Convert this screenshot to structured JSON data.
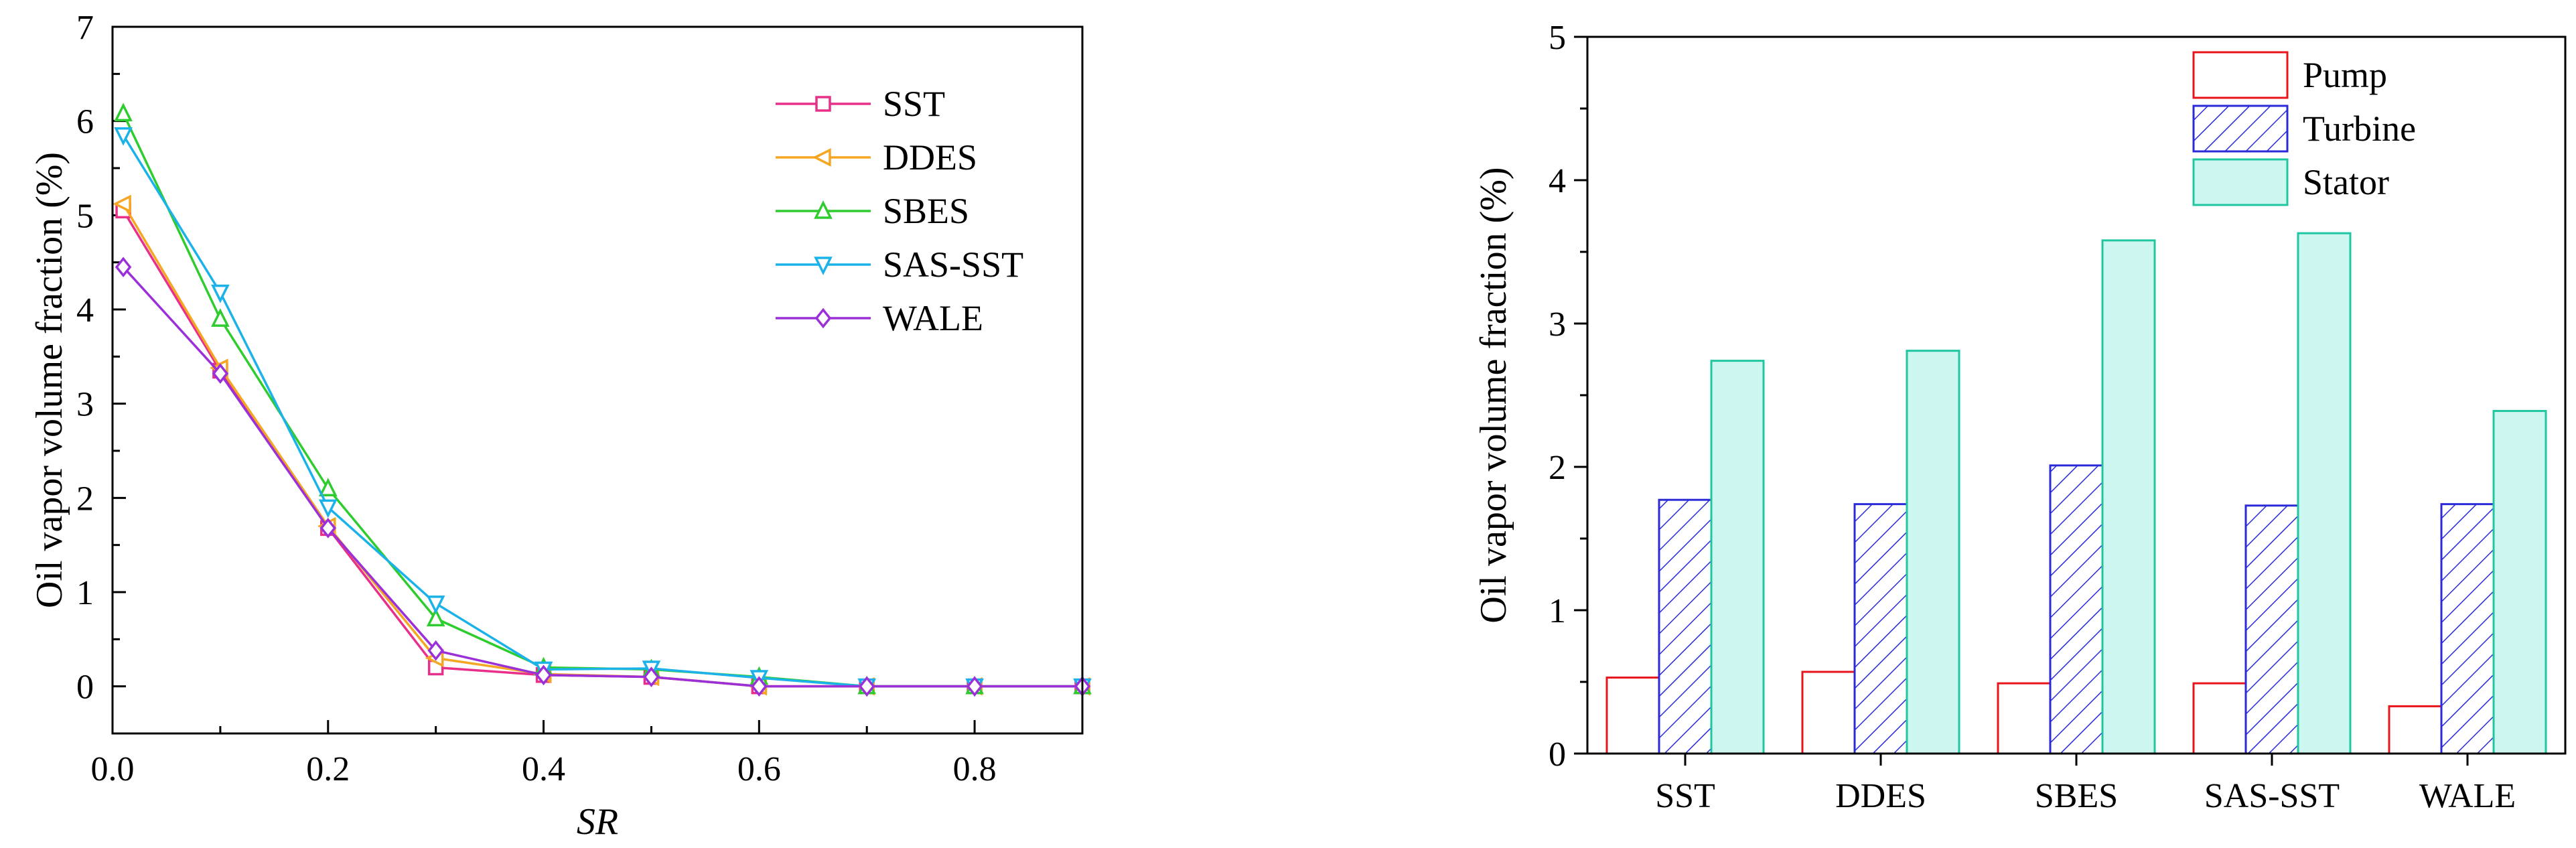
{
  "chart_data": [
    {
      "type": "line",
      "title": "",
      "xlabel": "SR",
      "ylabel": "Oil vapor volume fraction  (%)",
      "xlim": [
        0,
        0.9
      ],
      "ylim": [
        -0.5,
        7
      ],
      "xticks": [
        0.0,
        0.2,
        0.4,
        0.6,
        0.8
      ],
      "xtick_labels": [
        "0.0",
        "0.2",
        "0.4",
        "0.6",
        "0.8"
      ],
      "yticks": [
        0,
        1,
        2,
        3,
        4,
        5,
        6,
        7
      ],
      "ytick_labels": [
        "0",
        "1",
        "2",
        "3",
        "4",
        "5",
        "6",
        "7"
      ],
      "legend_position": "top-right",
      "series": [
        {
          "name": "SST",
          "color": "#e8308a",
          "marker": "square",
          "x": [
            0.01,
            0.1,
            0.2,
            0.3,
            0.4,
            0.5,
            0.6,
            0.7,
            0.8,
            0.9
          ],
          "y": [
            5.05,
            3.35,
            1.68,
            0.2,
            0.12,
            0.1,
            0.0,
            0.0,
            0.0,
            0.0
          ]
        },
        {
          "name": "DDES",
          "color": "#f5a623",
          "marker": "triangle-left",
          "x": [
            0.01,
            0.1,
            0.2,
            0.3,
            0.4,
            0.5,
            0.6,
            0.7,
            0.8,
            0.9
          ],
          "y": [
            5.12,
            3.38,
            1.7,
            0.3,
            0.13,
            0.1,
            0.0,
            0.0,
            0.0,
            0.0
          ]
        },
        {
          "name": "SBES",
          "color": "#2ecc2e",
          "marker": "triangle-up",
          "x": [
            0.01,
            0.1,
            0.2,
            0.3,
            0.4,
            0.5,
            0.6,
            0.7,
            0.8,
            0.9
          ],
          "y": [
            6.08,
            3.9,
            2.1,
            0.72,
            0.2,
            0.18,
            0.1,
            0.0,
            0.0,
            0.0
          ]
        },
        {
          "name": "SAS-SST",
          "color": "#1ab2e8",
          "marker": "triangle-down",
          "x": [
            0.01,
            0.1,
            0.2,
            0.3,
            0.4,
            0.5,
            0.6,
            0.7,
            0.8,
            0.9
          ],
          "y": [
            5.85,
            4.18,
            1.9,
            0.88,
            0.18,
            0.19,
            0.09,
            0.0,
            0.0,
            0.0
          ]
        },
        {
          "name": "WALE",
          "color": "#9b30d9",
          "marker": "diamond",
          "x": [
            0.01,
            0.1,
            0.2,
            0.3,
            0.4,
            0.5,
            0.6,
            0.7,
            0.8,
            0.9
          ],
          "y": [
            4.45,
            3.32,
            1.68,
            0.38,
            0.12,
            0.1,
            0.0,
            0.0,
            0.0,
            0.0
          ]
        }
      ]
    },
    {
      "type": "bar",
      "title": "",
      "xlabel": "",
      "ylabel": "Oil vapor volume fraction  (%)",
      "ylim": [
        0,
        5
      ],
      "yticks": [
        0,
        1,
        2,
        3,
        4,
        5
      ],
      "ytick_labels": [
        "0",
        "1",
        "2",
        "3",
        "4",
        "5"
      ],
      "categories": [
        "SST",
        "DDES",
        "SBES",
        "SAS-SST",
        "WALE"
      ],
      "legend_position": "top-right",
      "series": [
        {
          "name": "Pump",
          "style": "outline",
          "color": "#e8141b",
          "values": [
            0.53,
            0.57,
            0.49,
            0.49,
            0.33
          ]
        },
        {
          "name": "Turbine",
          "style": "hatched",
          "color": "#2a2ad8",
          "values": [
            1.77,
            1.74,
            2.01,
            1.73,
            1.74
          ]
        },
        {
          "name": "Stator",
          "style": "filled",
          "color": "#1fc7a0",
          "fill": "#ccf6ef",
          "values": [
            2.74,
            2.81,
            3.58,
            3.63,
            2.39
          ]
        }
      ]
    }
  ]
}
